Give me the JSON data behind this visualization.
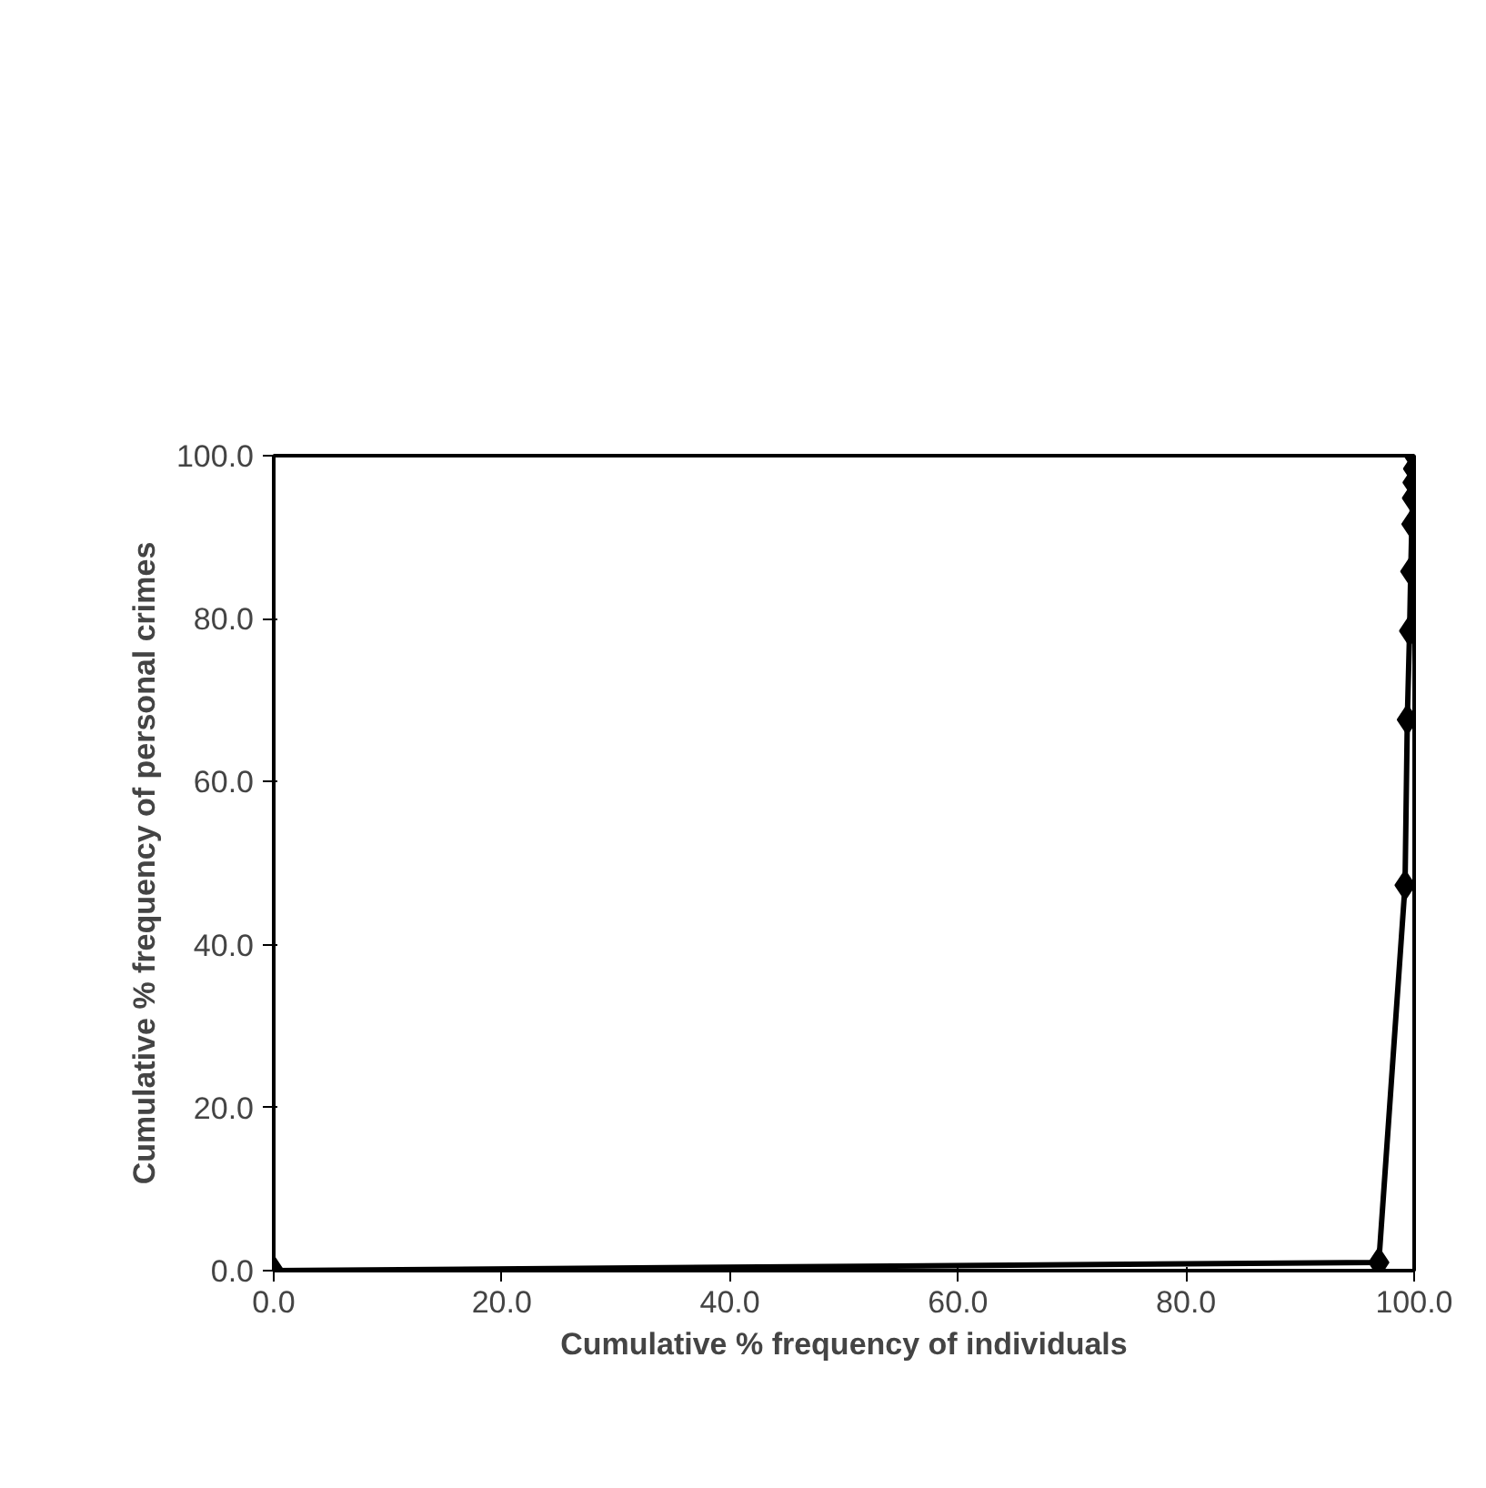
{
  "chart_data": {
    "type": "line",
    "xlabel": "Cumulative % frequency of individuals",
    "ylabel": "Cumulative % frequency of personal crimes",
    "x": [
      0,
      96.9,
      99.2,
      99.4,
      99.6,
      99.7,
      99.8,
      99.85,
      99.9,
      99.95,
      100
    ],
    "series": [
      {
        "color": "#000000",
        "values": [
          0,
          1,
          47.3,
          67.6,
          78.5,
          85.8,
          91.6,
          94.8,
          96.7,
          98.4,
          100
        ]
      }
    ],
    "xlim": [
      0,
      100
    ],
    "ylim": [
      0,
      100
    ],
    "xticks": [
      {
        "value": 0,
        "label": "0.0"
      },
      {
        "value": 20,
        "label": "20.0"
      },
      {
        "value": 40,
        "label": "40.0"
      },
      {
        "value": 60,
        "label": "60.0"
      },
      {
        "value": 80,
        "label": "80.0"
      },
      {
        "value": 100,
        "label": "100.0"
      }
    ],
    "yticks": [
      {
        "value": 0,
        "label": "0.0"
      },
      {
        "value": 20,
        "label": "20.0"
      },
      {
        "value": 40,
        "label": "40.0"
      },
      {
        "value": 60,
        "label": "60.0"
      },
      {
        "value": 80,
        "label": "80.0"
      },
      {
        "value": 100,
        "label": "100.0"
      }
    ],
    "grid": false,
    "marker": "diamond",
    "line_style": "solid"
  }
}
